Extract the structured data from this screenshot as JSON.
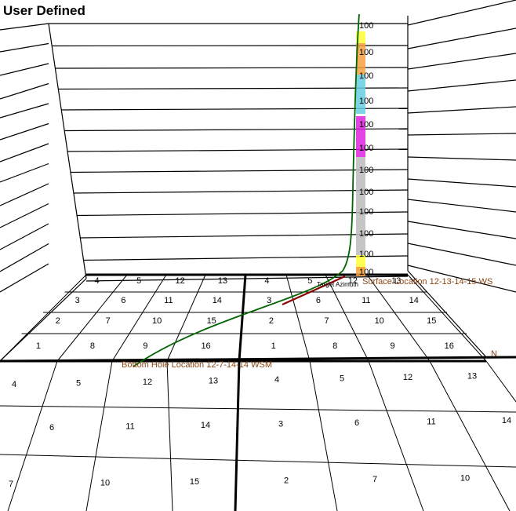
{
  "view": {
    "title": "User Defined"
  },
  "compass": {
    "north_label": "N"
  },
  "annotations": {
    "surface_location": "Surface Location 12-13-14-15 WS",
    "bottom_hole_location": "Bottom Hole Location 12-7-14-14 WSM",
    "target_azimuth": "Target Azimuth"
  },
  "depth_labels": [
    "100",
    "100",
    "100",
    "100",
    "100",
    "100",
    "100",
    "100",
    "100",
    "100",
    "100",
    "100"
  ],
  "far_grid_labels": [
    [
      "4",
      "5",
      "12",
      "13",
      "4",
      "5",
      "12",
      "13"
    ],
    [
      "3",
      "6",
      "11",
      "14",
      "3",
      "6",
      "11",
      "14"
    ],
    [
      "2",
      "7",
      "10",
      "15",
      "2",
      "7",
      "10",
      "15"
    ],
    [
      "1",
      "8",
      "9",
      "16",
      "1",
      "8",
      "9",
      "16"
    ]
  ],
  "near_grid_labels": [
    [
      "4",
      "5",
      "12",
      "13",
      "4",
      "5",
      "12",
      "13"
    ],
    [
      "6",
      "11",
      "14",
      "3",
      "6",
      "11",
      "14"
    ],
    [
      "7",
      "10",
      "15",
      "2",
      "7",
      "10"
    ]
  ],
  "colors": {
    "wellbore": "#006400",
    "azimuth": "#8b0000",
    "log_orange": "#f5a040",
    "log_cyan": "#66cce0",
    "log_magenta": "#dd22dd",
    "log_yellow": "#ffff33",
    "log_grey": "#bbbbbb"
  }
}
